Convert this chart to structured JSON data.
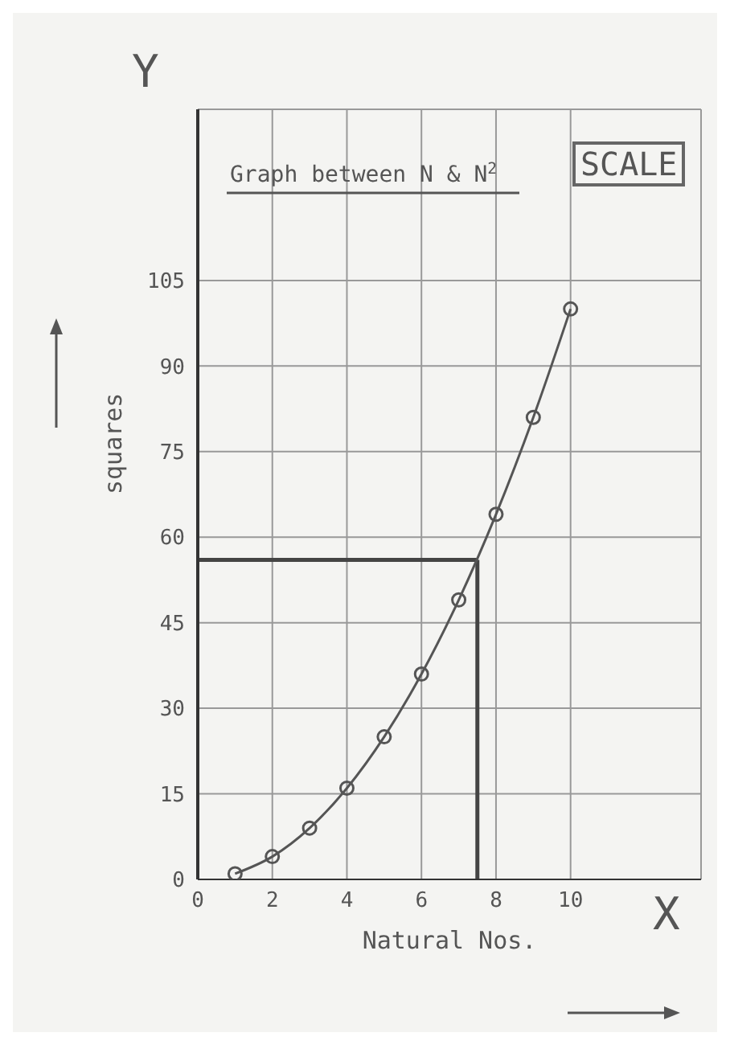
{
  "chart_data": {
    "type": "line",
    "title": "Graph between N & N$^{2}$",
    "xlabel": "Natural Nos.",
    "ylabel": "squares",
    "annotations": [
      "Y",
      "X",
      "SCALE"
    ],
    "x": [
      1,
      2,
      3,
      4,
      5,
      6,
      7,
      8,
      9,
      10
    ],
    "series": [
      {
        "color": "#555555",
        "values": [
          1,
          4,
          9,
          16,
          25,
          36,
          49,
          64,
          81,
          100
        ]
      }
    ],
    "xlim": [
      0,
      13.5
    ],
    "xticks": [
      0,
      2,
      4,
      6,
      8,
      10
    ],
    "ylim": [
      0,
      135
    ],
    "yticks": [
      0,
      15,
      30,
      45,
      60,
      75,
      90,
      105
    ],
    "ref_lines": [
      {
        "axis": "x",
        "value": 7.5,
        "color": "#444444"
      },
      {
        "axis": "y",
        "value": 56,
        "color": "#444444"
      }
    ],
    "grid": true,
    "marker": "circle",
    "line_style": "solid"
  }
}
